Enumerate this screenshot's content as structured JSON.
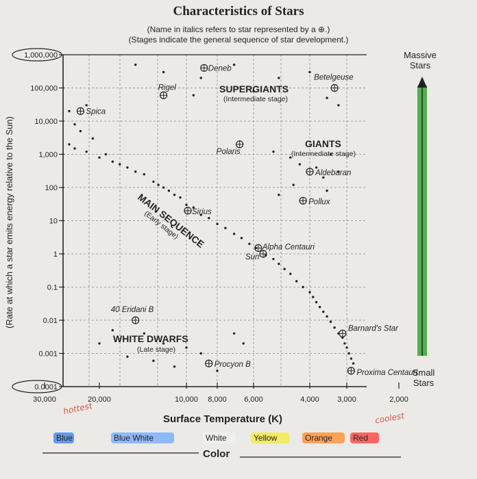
{
  "title": "Characteristics of Stars",
  "subtitle_line1": "(Name in italics refers to star represented by a ⊕.)",
  "subtitle_line2": "(Stages indicate the general sequence of star development.)",
  "massive_label": "Massive Stars",
  "small_label": "Small Stars",
  "colors": {
    "mass_bar": "#3fa83f",
    "ink": "#222222",
    "handwriting": "#d25a4a"
  },
  "color_scale": [
    {
      "name": "Blue",
      "color": "#3a7de8"
    },
    {
      "name": "Blue White",
      "color": "#6fa8ff"
    },
    {
      "name": "White",
      "color": "#f2f2f2"
    },
    {
      "name": "Yellow",
      "color": "#f5ea3a"
    },
    {
      "name": "Orange",
      "color": "#ff8a2a"
    },
    {
      "name": "Red",
      "color": "#ff3a3a"
    }
  ],
  "color_axis_label": "Color",
  "handwritten": {
    "hottest": "hottest",
    "coolest": "coolest"
  },
  "chart_data": {
    "type": "scatter",
    "title": "Characteristics of Stars",
    "xlabel": "Surface Temperature (K)",
    "ylabel": "(Rate at which a star emits energy relative to the Sun)",
    "x_ticks": [
      {
        "value": 30000,
        "label": "30,000"
      },
      {
        "value": 20000,
        "label": "20,000"
      },
      {
        "value": 10000,
        "label": "10,000"
      },
      {
        "value": 8000,
        "label": "8,000"
      },
      {
        "value": 6000,
        "label": "6,000"
      },
      {
        "value": 4000,
        "label": "4,000"
      },
      {
        "value": 3000,
        "label": "3,000"
      },
      {
        "value": 2000,
        "label": "2,000"
      }
    ],
    "y_ticks": [
      {
        "value": 1000000,
        "label": "1,000,000"
      },
      {
        "value": 100000,
        "label": "100,000"
      },
      {
        "value": 10000,
        "label": "10,000"
      },
      {
        "value": 1000,
        "label": "1,000"
      },
      {
        "value": 100,
        "label": "100"
      },
      {
        "value": 10,
        "label": "10"
      },
      {
        "value": 1,
        "label": "1"
      },
      {
        "value": 0.1,
        "label": "0.1"
      },
      {
        "value": 0.01,
        "label": "0.01"
      },
      {
        "value": 0.001,
        "label": "0.001"
      },
      {
        "value": 0.0001,
        "label": "0.0001"
      }
    ],
    "y_scale": "log",
    "named_stars": [
      {
        "name": "Deneb",
        "temperature": 8800,
        "luminosity": 400000
      },
      {
        "name": "Betelgeuse",
        "temperature": 3300,
        "luminosity": 100000
      },
      {
        "name": "Rigel",
        "temperature": 12000,
        "luminosity": 60000
      },
      {
        "name": "Spica",
        "temperature": 23000,
        "luminosity": 20000
      },
      {
        "name": "Polaris",
        "temperature": 6700,
        "luminosity": 2000
      },
      {
        "name": "Aldebaran",
        "temperature": 4000,
        "luminosity": 300
      },
      {
        "name": "Pollux",
        "temperature": 4200,
        "luminosity": 40
      },
      {
        "name": "Sirius",
        "temperature": 9900,
        "luminosity": 20
      },
      {
        "name": "Alpha Centauri",
        "temperature": 5800,
        "luminosity": 1.5
      },
      {
        "name": "Sun",
        "temperature": 5600,
        "luminosity": 1
      },
      {
        "name": "40 Eridani B",
        "temperature": 15000,
        "luminosity": 0.01
      },
      {
        "name": "Procyon B",
        "temperature": 8500,
        "luminosity": 0.0005
      },
      {
        "name": "Barnard's Star",
        "temperature": 3100,
        "luminosity": 0.004
      },
      {
        "name": "Proxima Centauri",
        "temperature": 2900,
        "luminosity": 0.0003
      }
    ],
    "regions": [
      {
        "name": "SUPERGIANTS",
        "stage": "(Intermediate stage)"
      },
      {
        "name": "GIANTS",
        "stage": "(Intermediate stage)"
      },
      {
        "name": "MAIN SEQUENCE",
        "stage": "(Early stage)"
      },
      {
        "name": "WHITE DWARFS",
        "stage": "(Late stage)"
      }
    ],
    "background_stars": [
      [
        25000,
        20000
      ],
      [
        22000,
        30000
      ],
      [
        27000,
        15000
      ],
      [
        24000,
        8000
      ],
      [
        26000,
        6000
      ],
      [
        23000,
        5000
      ],
      [
        28000,
        3000
      ],
      [
        25000,
        2000
      ],
      [
        21000,
        3000
      ],
      [
        24000,
        1500
      ],
      [
        22000,
        1200
      ],
      [
        20000,
        800
      ],
      [
        19000,
        1000
      ],
      [
        18000,
        600
      ],
      [
        17000,
        500
      ],
      [
        16000,
        400
      ],
      [
        15000,
        300
      ],
      [
        14000,
        250
      ],
      [
        13000,
        150
      ],
      [
        12500,
        120
      ],
      [
        12000,
        100
      ],
      [
        11500,
        80
      ],
      [
        11000,
        60
      ],
      [
        10500,
        50
      ],
      [
        10000,
        30
      ],
      [
        9500,
        25
      ],
      [
        9000,
        15
      ],
      [
        8500,
        12
      ],
      [
        8000,
        8
      ],
      [
        7500,
        6
      ],
      [
        7000,
        4
      ],
      [
        6600,
        3
      ],
      [
        6200,
        2
      ],
      [
        5900,
        1.5
      ],
      [
        5500,
        0.9
      ],
      [
        5200,
        0.7
      ],
      [
        5000,
        0.5
      ],
      [
        4800,
        0.35
      ],
      [
        4600,
        0.25
      ],
      [
        4400,
        0.15
      ],
      [
        4200,
        0.1
      ],
      [
        4000,
        0.07
      ],
      [
        3900,
        0.05
      ],
      [
        3800,
        0.035
      ],
      [
        3700,
        0.025
      ],
      [
        3600,
        0.018
      ],
      [
        3500,
        0.013
      ],
      [
        3400,
        0.009
      ],
      [
        3300,
        0.006
      ],
      [
        3200,
        0.004
      ],
      [
        3100,
        0.003
      ],
      [
        3050,
        0.002
      ],
      [
        3000,
        0.0015
      ],
      [
        2950,
        0.001
      ],
      [
        2900,
        0.0007
      ],
      [
        2850,
        0.0005
      ],
      [
        15000,
        500000
      ],
      [
        12000,
        300000
      ],
      [
        9000,
        200000
      ],
      [
        7000,
        500000
      ],
      [
        5000,
        200000
      ],
      [
        4000,
        300000
      ],
      [
        3500,
        50000
      ],
      [
        3200,
        30000
      ],
      [
        9500,
        60000
      ],
      [
        6000,
        80000
      ],
      [
        5200,
        1200
      ],
      [
        4600,
        800
      ],
      [
        4300,
        500
      ],
      [
        3800,
        400
      ],
      [
        3600,
        200
      ],
      [
        4500,
        120
      ],
      [
        5000,
        60
      ],
      [
        3500,
        80
      ],
      [
        3400,
        1000
      ],
      [
        3200,
        300
      ],
      [
        18000,
        0.005
      ],
      [
        14000,
        0.004
      ],
      [
        12000,
        0.002
      ],
      [
        10000,
        0.0015
      ],
      [
        9000,
        0.001
      ],
      [
        16000,
        0.0008
      ],
      [
        13000,
        0.0006
      ],
      [
        11000,
        0.0004
      ],
      [
        8000,
        0.0003
      ],
      [
        20000,
        0.002
      ],
      [
        26000,
        0.01
      ],
      [
        7000,
        0.004
      ],
      [
        6500,
        0.002
      ],
      [
        30000,
        5000
      ],
      [
        29000,
        9000
      ]
    ],
    "xlim": [
      30000,
      2000
    ],
    "ylim": [
      0.0001,
      1000000
    ],
    "grid": true,
    "annotations": [
      "Massive Stars",
      "Small Stars"
    ]
  }
}
